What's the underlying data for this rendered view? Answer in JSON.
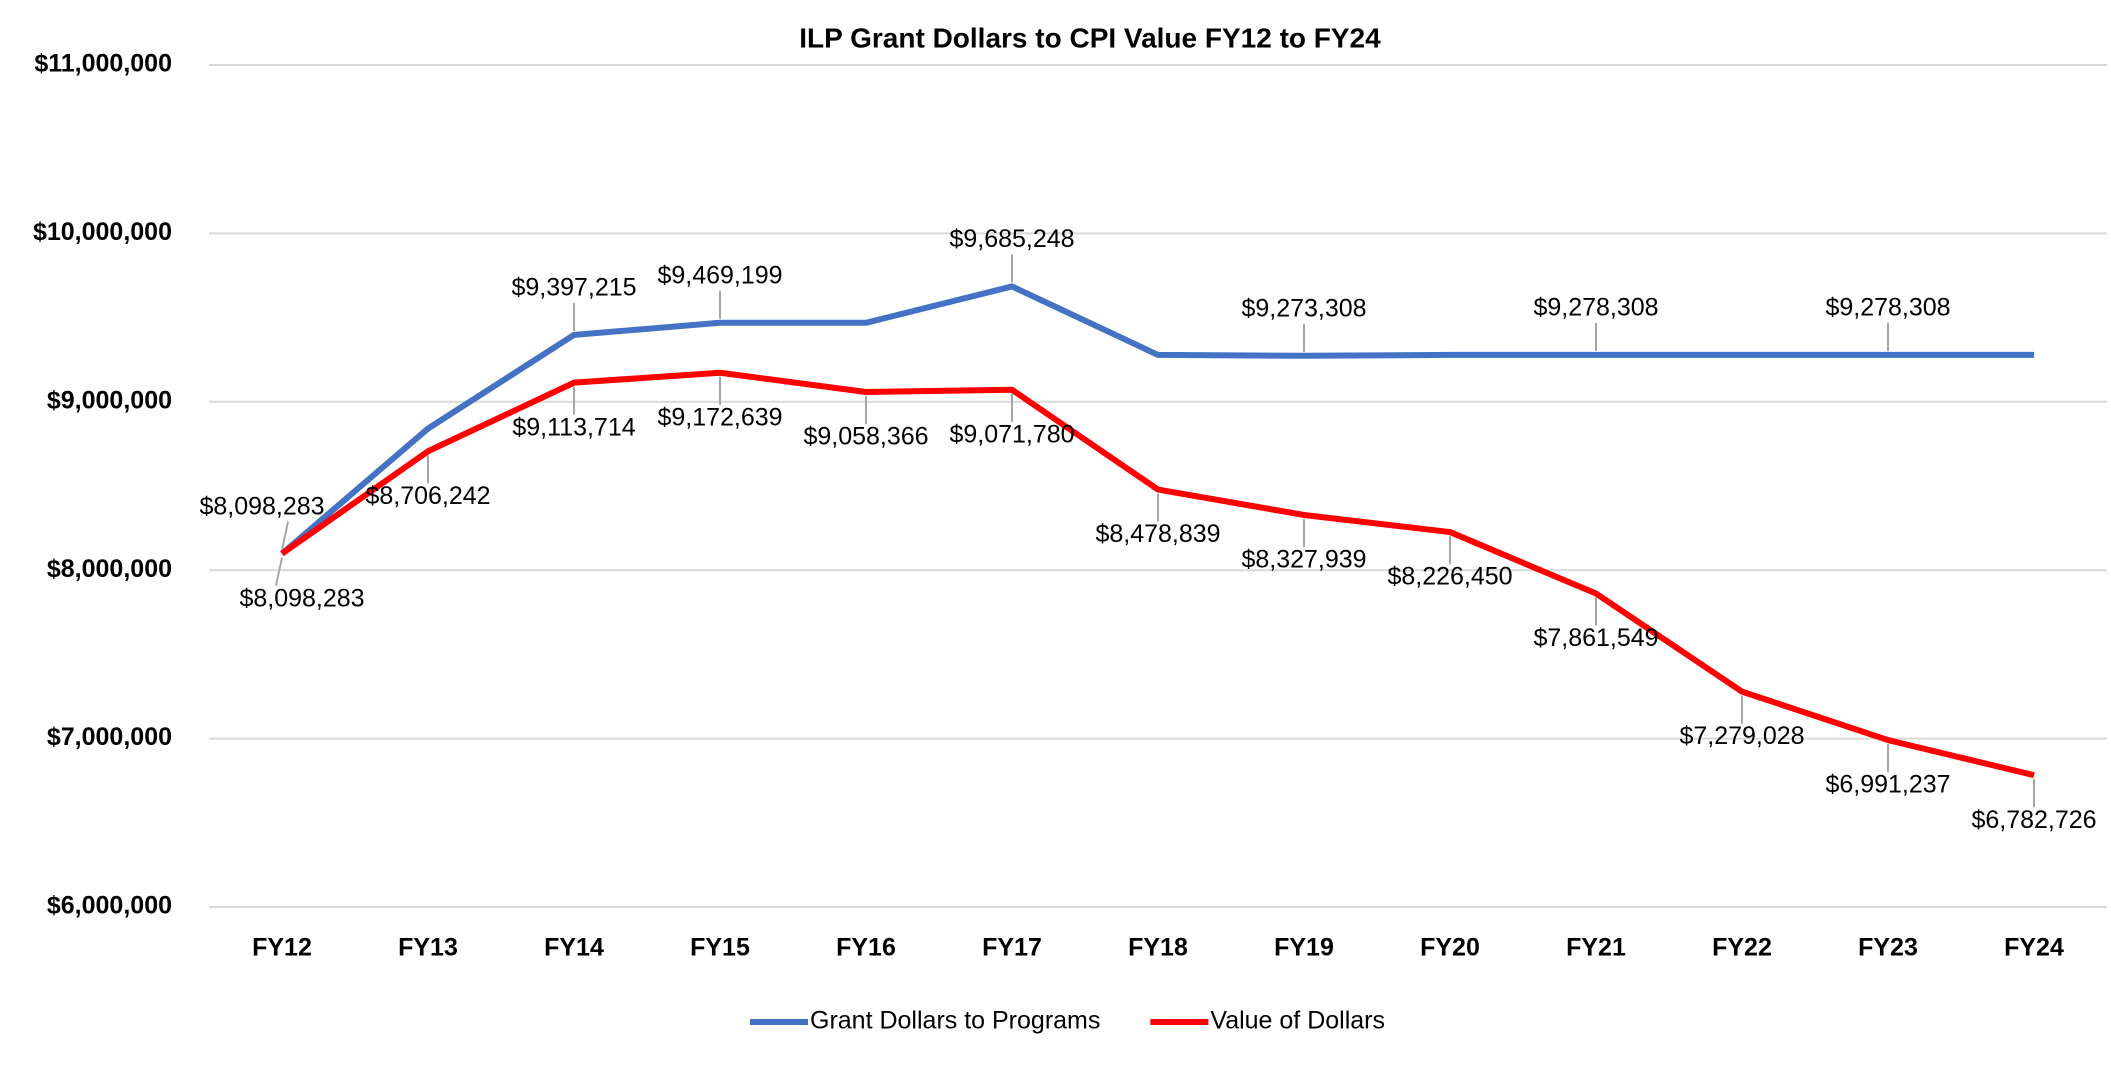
{
  "chart_data": {
    "type": "line",
    "title": "ILP Grant Dollars to CPI Value FY12 to FY24",
    "categories": [
      "FY12",
      "FY13",
      "FY14",
      "FY15",
      "FY16",
      "FY17",
      "FY18",
      "FY19",
      "FY20",
      "FY21",
      "FY22",
      "FY23",
      "FY24"
    ],
    "series": [
      {
        "name": "Grant Dollars to Programs",
        "color": "#4472c4",
        "values": [
          8098283,
          8841000,
          9397215,
          9469199,
          9469199,
          9685248,
          9278308,
          9273308,
          9278308,
          9278308,
          9278308,
          9278308,
          9278308
        ],
        "value_labels": [
          "$8,098,283",
          null,
          "$9,397,215",
          "$9,469,199",
          null,
          "$9,685,248",
          null,
          "$9,273,308",
          null,
          "$9,278,308",
          null,
          "$9,278,308",
          null
        ]
      },
      {
        "name": "Value of Dollars",
        "color": "#ff0000",
        "values": [
          8098283,
          8706242,
          9113714,
          9172639,
          9058366,
          9071780,
          8478839,
          8327939,
          8226450,
          7861549,
          7279028,
          6991237,
          6782726
        ],
        "value_labels": [
          "$8,098,283",
          "$8,706,242",
          "$9,113,714",
          "$9,172,639",
          "$9,058,366",
          "$9,071,780",
          "$8,478,839",
          "$8,327,939",
          "$8,226,450",
          "$7,861,549",
          "$7,279,028",
          "$6,991,237",
          "$6,782,726"
        ]
      }
    ],
    "ylim": [
      6000000,
      11000000
    ],
    "yticks": [
      {
        "value": 6000000,
        "label": "$6,000,000"
      },
      {
        "value": 7000000,
        "label": "$7,000,000"
      },
      {
        "value": 8000000,
        "label": "$8,000,000"
      },
      {
        "value": 9000000,
        "label": "$9,000,000"
      },
      {
        "value": 10000000,
        "label": "$10,000,000"
      },
      {
        "value": 11000000,
        "label": "$11,000,000"
      }
    ],
    "grid": true,
    "legend": "bottom"
  }
}
